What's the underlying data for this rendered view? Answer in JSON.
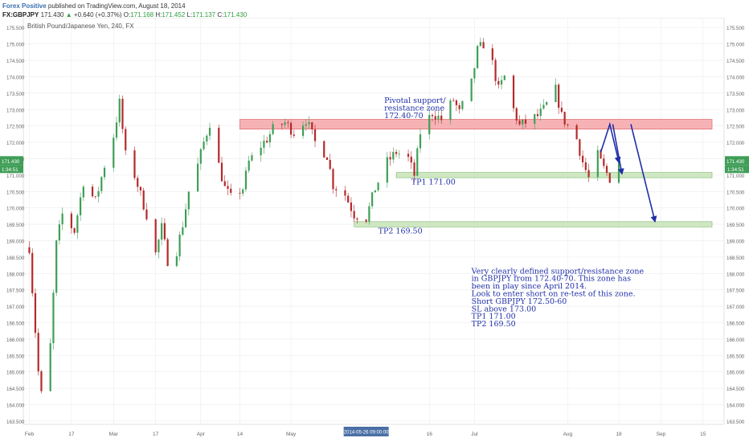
{
  "header": {
    "author": "Forex Positive",
    "published": "published on TradingView.com, August 18, 2014",
    "symbol": "FX:GBPJPY",
    "last": "171.430",
    "change": "+0.640 (+0.37%)",
    "o_label": "O:",
    "o": "171.168",
    "h_label": "H:",
    "h": "171.452",
    "l_label": "L:",
    "l": "171.137",
    "c_label": "C:",
    "c": "171.430"
  },
  "colors": {
    "up": "#3f9e57",
    "down": "#b32a2a",
    "resistance_zone": "#f4a5a8",
    "target_zone": "#c7e3b9",
    "annotation": "#1f2fa8",
    "price_label": "#3f9e57"
  },
  "chart_data": {
    "type": "candlestick",
    "title": "British Pound/Japanese Yen, 240, FX",
    "ylim": [
      163.4,
      175.8
    ],
    "y_ticks": [
      "163.500",
      "164.000",
      "164.500",
      "165.000",
      "165.500",
      "166.000",
      "166.500",
      "167.000",
      "167.500",
      "168.000",
      "168.500",
      "169.000",
      "169.500",
      "170.000",
      "170.500",
      "171.000",
      "171.500",
      "172.000",
      "172.500",
      "173.000",
      "173.500",
      "174.000",
      "174.500",
      "175.000",
      "175.500"
    ],
    "x_ticks": [
      "Feb",
      "17",
      "Mar",
      "17",
      "Apr",
      "14",
      "May",
      "16",
      "Jul",
      "Aug",
      "18",
      "Sep",
      "15"
    ],
    "crosshair_date": "2014-05-26 09:00:00",
    "last_price_label": "171.430",
    "countdown_label": "1:34:51",
    "price_path": [
      [
        "2014-02-03",
        168.8
      ],
      [
        "2014-02-04",
        167.5
      ],
      [
        "2014-02-06",
        165.0
      ],
      [
        "2014-02-07",
        164.3
      ],
      [
        "2014-02-10",
        165.8
      ],
      [
        "2014-02-12",
        168.9
      ],
      [
        "2014-02-14",
        169.8
      ],
      [
        "2014-02-18",
        169.3
      ],
      [
        "2014-02-21",
        170.8
      ],
      [
        "2014-02-25",
        170.2
      ],
      [
        "2014-02-28",
        171.3
      ],
      [
        "2014-03-03",
        172.2
      ],
      [
        "2014-03-05",
        173.2
      ],
      [
        "2014-03-07",
        171.6
      ],
      [
        "2014-03-10",
        171.0
      ],
      [
        "2014-03-12",
        170.4
      ],
      [
        "2014-03-14",
        169.8
      ],
      [
        "2014-03-17",
        168.6
      ],
      [
        "2014-03-19",
        169.4
      ],
      [
        "2014-03-21",
        168.4
      ],
      [
        "2014-03-24",
        168.7
      ],
      [
        "2014-03-26",
        169.5
      ],
      [
        "2014-03-28",
        170.5
      ],
      [
        "2014-03-31",
        171.3
      ],
      [
        "2014-04-02",
        172.0
      ],
      [
        "2014-04-04",
        172.6
      ],
      [
        "2014-04-07",
        171.3
      ],
      [
        "2014-04-09",
        170.6
      ],
      [
        "2014-04-11",
        170.3
      ],
      [
        "2014-04-15",
        170.6
      ],
      [
        "2014-04-17",
        171.4
      ],
      [
        "2014-04-21",
        171.9
      ],
      [
        "2014-04-23",
        172.1
      ],
      [
        "2014-04-25",
        172.4
      ],
      [
        "2014-04-29",
        172.6
      ],
      [
        "2014-05-02",
        172.3
      ],
      [
        "2014-05-06",
        172.7
      ],
      [
        "2014-05-09",
        172.0
      ],
      [
        "2014-05-13",
        171.6
      ],
      [
        "2014-05-15",
        170.7
      ],
      [
        "2014-05-19",
        170.4
      ],
      [
        "2014-05-22",
        169.8
      ],
      [
        "2014-05-26",
        169.7
      ],
      [
        "2014-05-29",
        170.6
      ],
      [
        "2014-06-02",
        171.4
      ],
      [
        "2014-06-05",
        171.7
      ],
      [
        "2014-06-09",
        171.5
      ],
      [
        "2014-06-11",
        171.0
      ],
      [
        "2014-06-13",
        172.3
      ],
      [
        "2014-06-17",
        172.9
      ],
      [
        "2014-06-20",
        172.7
      ],
      [
        "2014-06-24",
        173.3
      ],
      [
        "2014-06-26",
        172.9
      ],
      [
        "2014-06-30",
        173.8
      ],
      [
        "2014-07-02",
        174.8
      ],
      [
        "2014-07-04",
        175.0
      ],
      [
        "2014-07-07",
        174.4
      ],
      [
        "2014-07-09",
        173.6
      ],
      [
        "2014-07-11",
        174.0
      ],
      [
        "2014-07-14",
        173.0
      ],
      [
        "2014-07-16",
        172.5
      ],
      [
        "2014-07-18",
        172.6
      ],
      [
        "2014-07-22",
        172.8
      ],
      [
        "2014-07-24",
        173.0
      ],
      [
        "2014-07-28",
        173.6
      ],
      [
        "2014-07-30",
        172.8
      ],
      [
        "2014-08-01",
        172.5
      ],
      [
        "2014-08-04",
        172.1
      ],
      [
        "2014-08-06",
        171.4
      ],
      [
        "2014-08-08",
        170.9
      ],
      [
        "2014-08-11",
        171.6
      ],
      [
        "2014-08-13",
        171.2
      ],
      [
        "2014-08-15",
        170.9
      ],
      [
        "2014-08-18",
        171.43
      ]
    ],
    "zones": [
      {
        "from": "2014-04-14",
        "to": "2014-09-18",
        "low": 172.4,
        "high": 172.7,
        "color": "resistance"
      },
      {
        "from": "2014-06-05",
        "to": "2014-09-18",
        "low": 170.92,
        "high": 171.08,
        "color": "target"
      },
      {
        "from": "2014-05-22",
        "to": "2014-09-18",
        "low": 169.42,
        "high": 169.58,
        "color": "target"
      }
    ],
    "arrows": [
      {
        "points": [
          [
            "2014-08-12",
            171.7
          ],
          [
            "2014-08-15",
            172.55
          ],
          [
            "2014-08-18",
            171.4
          ]
        ]
      },
      {
        "points": [
          [
            "2014-08-16",
            172.55
          ],
          [
            "2014-08-19",
            171.05
          ]
        ]
      },
      {
        "points": [
          [
            "2014-08-22",
            172.55
          ],
          [
            "2014-08-30",
            169.6
          ]
        ]
      }
    ],
    "annotations": [
      {
        "x": "2014-06-01",
        "y": 173.2,
        "lines": [
          "Pivotal support/",
          "resistance zone",
          "172.40-70"
        ]
      },
      {
        "x": "2014-06-10",
        "y": 170.72,
        "lines": [
          "TP1 171.00"
        ]
      },
      {
        "x": "2014-05-30",
        "y": 169.22,
        "lines": [
          "TP2 169.50"
        ]
      },
      {
        "x": "2014-06-30",
        "y": 168.0,
        "lines": [
          "Very clearly defined support/resistance zone",
          "in GBPJPY from 172.40-70. This zone has",
          "been in play since April 2014.",
          "",
          "Look to enter short on re-test of this zone.",
          "",
          "Short GBPJPY 172.50-60",
          "SL above 173.00",
          "TP1 171.00",
          "TP2 169.50"
        ]
      }
    ]
  }
}
